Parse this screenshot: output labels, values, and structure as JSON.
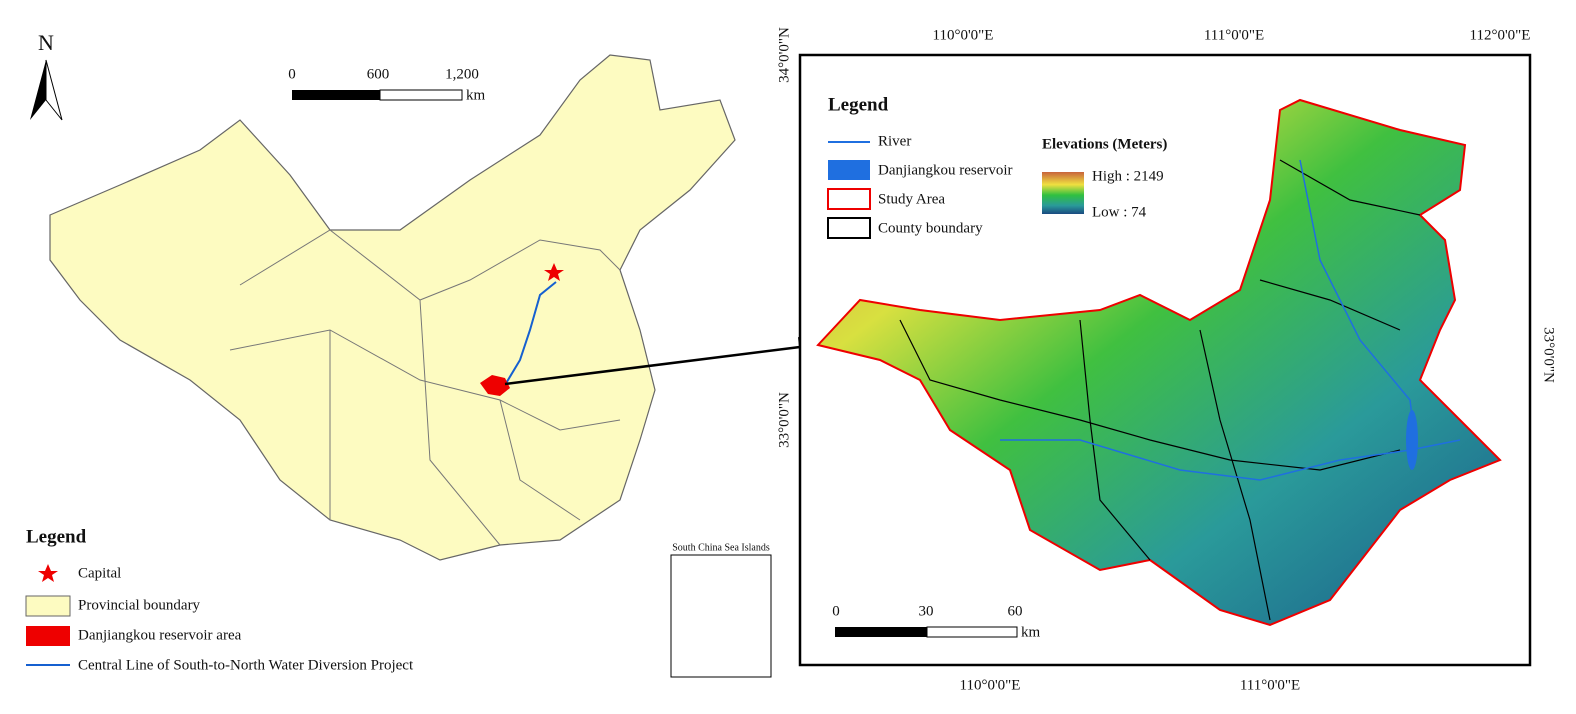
{
  "left_map": {
    "north": "N",
    "scale_bar": {
      "labels": [
        "0",
        "600",
        "1,200"
      ],
      "unit": "km"
    },
    "legend": {
      "title": "Legend",
      "items": [
        "Capital",
        "Provincial boundary",
        "Danjiangkou reservoir area",
        "Central Line of South-to-North Water Diversion Project"
      ]
    },
    "inset_title": "South China Sea Islands"
  },
  "right_map": {
    "top_longitudes": [
      "110°0'0\"E",
      "111°0'0\"E",
      "112°0'0\"E"
    ],
    "bottom_longitudes": [
      "110°0'0\"E",
      "111°0'0\"E"
    ],
    "left_latitudes": [
      "34°0'0\"N",
      "33°0'0\"N"
    ],
    "right_latitudes": [
      "33°0'0\"N"
    ],
    "legend": {
      "title": "Legend",
      "items": [
        "River",
        "Danjiangkou reservoir",
        "Study Area",
        "County boundary"
      ],
      "elevation_title": "Elevations  (Meters)",
      "high": "High : 2149",
      "low": "Low : 74"
    },
    "scale_bar": {
      "labels": [
        "0",
        "30",
        "60"
      ],
      "unit": "km"
    }
  }
}
